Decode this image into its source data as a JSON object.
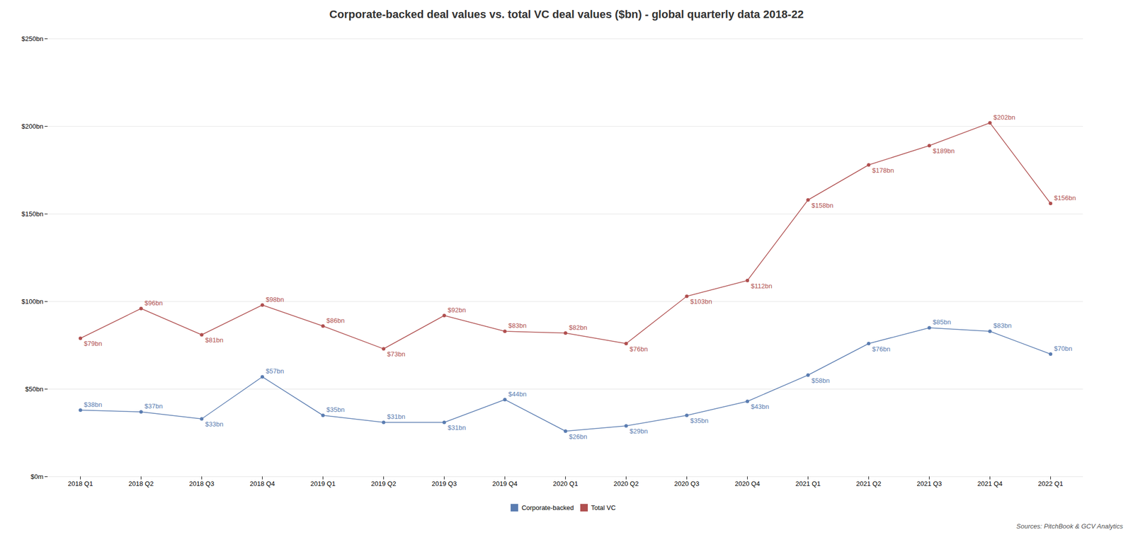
{
  "chart_data": {
    "type": "line",
    "title": "Corporate-backed deal values vs. total VC deal values ($bn) - global quarterly data 2018-22",
    "categories": [
      "2018 Q1",
      "2018 Q2",
      "2018 Q3",
      "2018 Q4",
      "2019 Q1",
      "2019 Q2",
      "2019 Q3",
      "2019 Q4",
      "2020 Q1",
      "2020 Q2",
      "2020 Q3",
      "2020 Q4",
      "2021 Q1",
      "2021 Q2",
      "2021 Q3",
      "2021 Q4",
      "2022 Q1"
    ],
    "series": [
      {
        "name": "Corporate-backed",
        "color": "#5b7db1",
        "values": [
          38,
          37,
          33,
          57,
          35,
          31,
          31,
          44,
          26,
          29,
          35,
          43,
          58,
          76,
          85,
          83,
          70
        ],
        "value_labels": [
          "$38bn",
          "$37bn",
          "$33bn",
          "$57bn",
          "$35bn",
          "$31bn",
          "$31bn",
          "$44bn",
          "$26bn",
          "$29bn",
          "$35bn",
          "$43bn",
          "$58bn",
          "$76bn",
          "$85bn",
          "$83bn",
          "$70bn"
        ]
      },
      {
        "name": "Total VC",
        "color": "#b05050",
        "values": [
          79,
          96,
          81,
          98,
          86,
          73,
          92,
          83,
          82,
          76,
          103,
          112,
          158,
          178,
          189,
          202,
          156
        ],
        "value_labels": [
          "$79bn",
          "$96bn",
          "$81bn",
          "$98bn",
          "$86bn",
          "$73bn",
          "$92bn",
          "$83bn",
          "$82bn",
          "$76bn",
          "$103bn",
          "$112bn",
          "$158bn",
          "$178bn",
          "$189bn",
          "$202bn",
          "$156bn"
        ]
      }
    ],
    "ylim": [
      0,
      250
    ],
    "yticks": [
      {
        "value": 0,
        "label": "$0m"
      },
      {
        "value": 50,
        "label": "$50bn"
      },
      {
        "value": 100,
        "label": "$100bn"
      },
      {
        "value": 150,
        "label": "$150bn"
      },
      {
        "value": 200,
        "label": "$200bn"
      },
      {
        "value": 250,
        "label": "$250bn"
      }
    ],
    "grid": true,
    "legend": "bottom",
    "marker": "circle",
    "data_labels": true,
    "annotations": [
      "Sources: PitchBook & GCV Analytics"
    ]
  }
}
